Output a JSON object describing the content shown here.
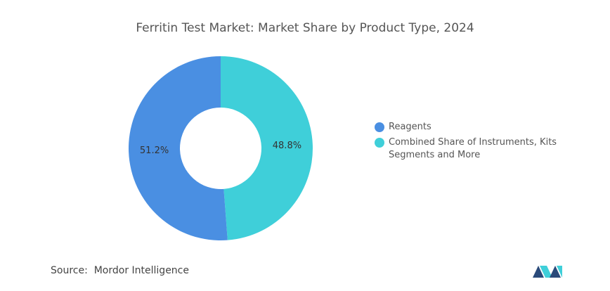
{
  "chart_data": {
    "type": "donut",
    "title": "Ferritin Test Market: Market Share by Product Type, 2024",
    "categories": [
      "Reagents",
      "Combined Share of Instruments, Kits Segments and More"
    ],
    "values": [
      51.2,
      48.8
    ],
    "value_labels": [
      "51.2%",
      "48.8%"
    ],
    "colors": [
      "#4a8fe2",
      "#3fcfd9"
    ],
    "legend": "right"
  },
  "source": {
    "label": "Source:",
    "name": "Mordor Intelligence"
  }
}
